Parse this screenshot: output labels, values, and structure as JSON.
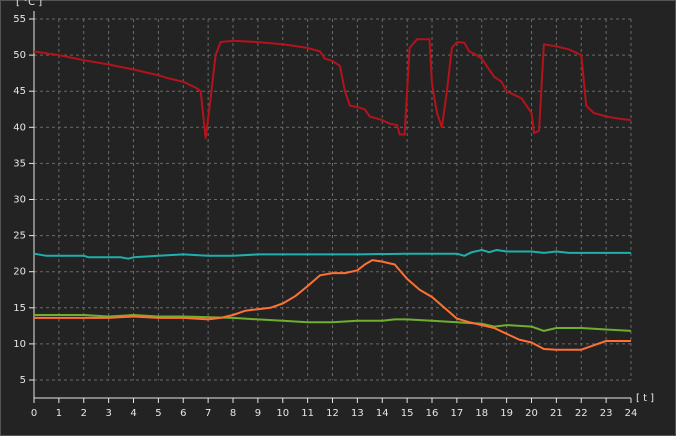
{
  "chart_data": {
    "type": "line",
    "y_label": "[ °C ]",
    "x_label": "[ t ]",
    "xlim": [
      0,
      24
    ],
    "xticks": [
      0,
      1,
      2,
      3,
      4,
      5,
      6,
      7,
      8,
      9,
      10,
      11,
      12,
      13,
      14,
      15,
      16,
      17,
      18,
      19,
      20,
      21,
      22,
      23,
      24
    ],
    "ylim": [
      5,
      55
    ],
    "yticks": [
      5,
      10,
      15,
      20,
      25,
      30,
      35,
      40,
      45,
      50,
      55
    ],
    "grid": true,
    "series": [
      {
        "color": "#b3131b",
        "x": [
          0,
          1,
          2,
          3,
          4,
          5,
          5.5,
          6,
          6.5,
          6.7,
          6.9,
          7.1,
          7.3,
          7.5,
          8,
          9,
          10,
          11,
          11.5,
          11.7,
          12,
          12.3,
          12.5,
          12.7,
          13,
          13.3,
          13.5,
          14,
          14.3,
          14.6,
          14.7,
          14.9,
          15.1,
          15.4,
          15.9,
          16,
          16.2,
          16.4,
          16.6,
          16.8,
          17,
          17.3,
          17.5,
          17.7,
          18,
          18.3,
          18.5,
          18.8,
          19,
          19.3,
          19.6,
          20,
          20.1,
          20.3,
          20.5,
          21,
          21.5,
          22,
          22.2,
          22.5,
          23,
          23.5,
          24
        ],
        "values": [
          50.5,
          50,
          49.3,
          48.7,
          48,
          47.2,
          46.7,
          46.3,
          45.5,
          45,
          38.5,
          44,
          50,
          51.8,
          52,
          51.8,
          51.5,
          51,
          50.5,
          49.5,
          49.2,
          48.5,
          45,
          43,
          42.8,
          42.5,
          41.5,
          41,
          40.5,
          40.3,
          39,
          39,
          51,
          52.2,
          52.2,
          46,
          42,
          40,
          45,
          51,
          51.8,
          51.7,
          50.5,
          50.2,
          49.5,
          48,
          47,
          46.3,
          45,
          44.5,
          44,
          42,
          39.2,
          39.5,
          51.5,
          51.2,
          50.8,
          50,
          43,
          42,
          41.5,
          41.2,
          41
        ]
      },
      {
        "color": "#1fb0ad",
        "x": [
          0,
          0.5,
          2,
          2.2,
          3.5,
          3.8,
          4,
          5,
          6,
          7,
          8,
          9,
          10,
          12,
          13,
          15,
          17,
          17.3,
          17.6,
          18,
          18.3,
          18.6,
          19,
          20,
          20.5,
          21,
          21.5,
          24
        ],
        "values": [
          22.5,
          22.2,
          22.2,
          22,
          22,
          21.8,
          22,
          22.2,
          22.4,
          22.2,
          22.2,
          22.4,
          22.4,
          22.4,
          22.4,
          22.5,
          22.5,
          22.2,
          22.7,
          23,
          22.7,
          23,
          22.8,
          22.8,
          22.6,
          22.8,
          22.6,
          22.6
        ]
      },
      {
        "color": "#6fae2e",
        "x": [
          0,
          2,
          3,
          4,
          5,
          6,
          8,
          9,
          10,
          11,
          12,
          13,
          14,
          14.5,
          15,
          16,
          17,
          18,
          18.5,
          19,
          20,
          20.5,
          21,
          22,
          23,
          24
        ],
        "values": [
          14,
          14,
          13.8,
          14,
          13.8,
          13.8,
          13.6,
          13.4,
          13.2,
          13,
          13,
          13.2,
          13.2,
          13.4,
          13.4,
          13.2,
          13,
          12.8,
          12.4,
          12.6,
          12.4,
          11.8,
          12.2,
          12.2,
          12,
          11.8
        ]
      },
      {
        "color": "#ff7033",
        "x": [
          0,
          3,
          4,
          5,
          6,
          7,
          7.5,
          8,
          8.5,
          9,
          9.5,
          10,
          10.5,
          11,
          11.5,
          12,
          12.5,
          13,
          13.3,
          13.6,
          14,
          14.5,
          15,
          15.5,
          16,
          16.5,
          17,
          17.5,
          18,
          18.5,
          19,
          19.5,
          20,
          20.5,
          21,
          22,
          22.5,
          23,
          24
        ],
        "values": [
          13.6,
          13.6,
          13.8,
          13.6,
          13.6,
          13.4,
          13.6,
          14,
          14.6,
          14.8,
          15,
          15.6,
          16.6,
          18,
          19.5,
          19.8,
          19.8,
          20.2,
          21,
          21.6,
          21.4,
          21,
          19,
          17.5,
          16.5,
          15,
          13.5,
          13,
          12.6,
          12.2,
          11.4,
          10.6,
          10.2,
          9.3,
          9.2,
          9.2,
          9.8,
          10.4,
          10.4
        ]
      }
    ]
  }
}
